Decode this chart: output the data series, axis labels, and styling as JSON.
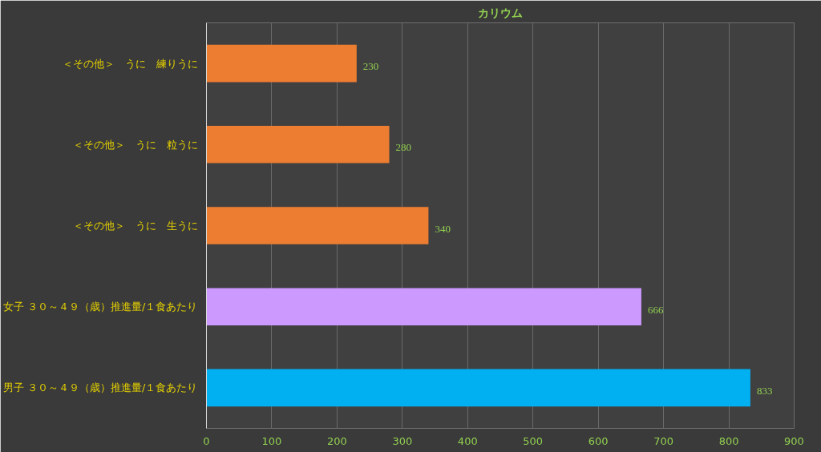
{
  "chart_data": {
    "type": "bar",
    "orientation": "horizontal",
    "title": "カリウム",
    "categories": [
      "＜その他＞　うに　練りうに",
      "＜その他＞　うに　粒うに",
      "＜その他＞　うに　生うに",
      "女子 ３０～４９（歳）推進量/１食あたり",
      "男子 ３０～４９（歳）推進量/１食あたり"
    ],
    "values": [
      230,
      280,
      340,
      666,
      833
    ],
    "colors": [
      "#ed7d31",
      "#ed7d31",
      "#ed7d31",
      "#cc99ff",
      "#00b0f0"
    ],
    "xlim": [
      0,
      900
    ],
    "xticks": [
      0,
      100,
      200,
      300,
      400,
      500,
      600,
      700,
      800,
      900
    ],
    "grid": "x",
    "data_labels": true
  }
}
